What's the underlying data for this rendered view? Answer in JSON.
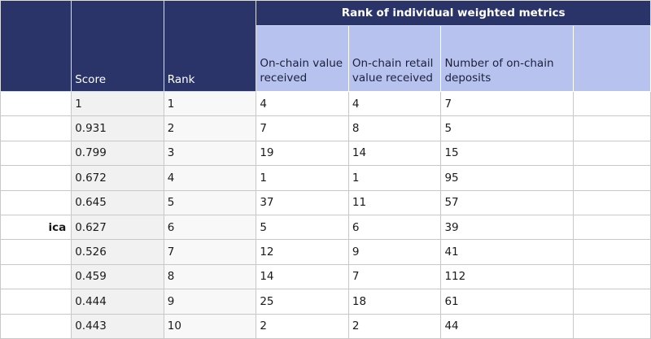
{
  "table": {
    "group_header": "Rank of individual weighted metrics",
    "headers": {
      "score": "Score",
      "rank": "Rank",
      "metric_1": "On-chain value received",
      "metric_2": "On-chain retail value received",
      "metric_3": "Number of on-chain deposits"
    },
    "rows": [
      {
        "country": "",
        "score": "1",
        "rank": "1",
        "m1": "4",
        "m2": "4",
        "m3": "7"
      },
      {
        "country": "",
        "score": "0.931",
        "rank": "2",
        "m1": "7",
        "m2": "8",
        "m3": "5"
      },
      {
        "country": "",
        "score": "0.799",
        "rank": "3",
        "m1": "19",
        "m2": "14",
        "m3": "15"
      },
      {
        "country": "",
        "score": "0.672",
        "rank": "4",
        "m1": "1",
        "m2": "1",
        "m3": "95"
      },
      {
        "country": "",
        "score": "0.645",
        "rank": "5",
        "m1": "37",
        "m2": "11",
        "m3": "57"
      },
      {
        "country": "ica",
        "score": "0.627",
        "rank": "6",
        "m1": "5",
        "m2": "6",
        "m3": "39"
      },
      {
        "country": "",
        "score": "0.526",
        "rank": "7",
        "m1": "12",
        "m2": "9",
        "m3": "41"
      },
      {
        "country": "",
        "score": "0.459",
        "rank": "8",
        "m1": "14",
        "m2": "7",
        "m3": "112"
      },
      {
        "country": "",
        "score": "0.444",
        "rank": "9",
        "m1": "25",
        "m2": "18",
        "m3": "61"
      },
      {
        "country": "",
        "score": "0.443",
        "rank": "10",
        "m1": "2",
        "m2": "2",
        "m3": "44"
      }
    ]
  }
}
